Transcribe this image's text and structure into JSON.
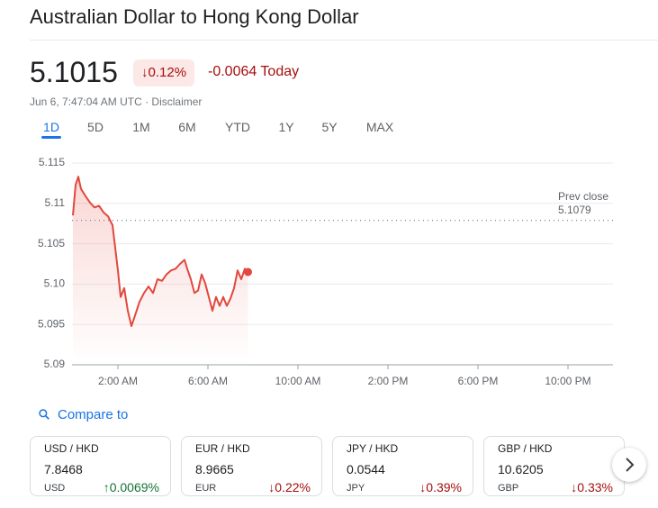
{
  "header": {
    "title": "Australian Dollar to Hong Kong Dollar",
    "price": "5.1015",
    "change_percent": "↓0.12%",
    "change_today": "-0.0064 Today",
    "timestamp": "Jun 6, 7:47:04 AM UTC ·",
    "disclaimer": "Disclaimer"
  },
  "tabs": {
    "items": [
      "1D",
      "5D",
      "1M",
      "6M",
      "YTD",
      "1Y",
      "5Y",
      "MAX"
    ],
    "selected_index": 0
  },
  "chart_data": {
    "type": "line",
    "color": "#e2483d",
    "x": [
      0,
      0.12,
      0.24,
      0.36,
      0.56,
      0.76,
      0.96,
      1.16,
      1.36,
      1.56,
      1.76,
      1.88,
      2.0,
      2.12,
      2.28,
      2.44,
      2.6,
      2.76,
      2.96,
      3.16,
      3.36,
      3.56,
      3.76,
      3.96,
      4.16,
      4.36,
      4.56,
      4.76,
      4.96,
      5.08,
      5.24,
      5.4,
      5.56,
      5.72,
      5.88,
      6.04,
      6.2,
      6.36,
      6.52,
      6.68,
      6.84,
      7.0,
      7.16,
      7.32,
      7.48,
      7.64,
      7.78
    ],
    "values": [
      5.1085,
      5.1123,
      5.1133,
      5.1118,
      5.1109,
      5.1101,
      5.1095,
      5.1097,
      5.1089,
      5.1084,
      5.1073,
      5.1045,
      5.1017,
      5.0984,
      5.0995,
      5.0967,
      5.0948,
      5.0961,
      5.0978,
      5.0989,
      5.0997,
      5.0989,
      5.1006,
      5.1004,
      5.1012,
      5.1017,
      5.1019,
      5.1025,
      5.103,
      5.1019,
      5.1006,
      5.0989,
      5.0992,
      5.1012,
      5.1001,
      5.0984,
      5.0967,
      5.0984,
      5.0973,
      5.0984,
      5.0973,
      5.0982,
      5.0995,
      5.1017,
      5.1006,
      5.1019,
      5.1015
    ],
    "xlim": [
      0,
      24
    ],
    "xticks": [
      {
        "value": 2,
        "label": "2:00 AM"
      },
      {
        "value": 6,
        "label": "6:00 AM"
      },
      {
        "value": 10,
        "label": "10:00 AM"
      },
      {
        "value": 14,
        "label": "2:00 PM"
      },
      {
        "value": 18,
        "label": "6:00 PM"
      },
      {
        "value": 22,
        "label": "10:00 PM"
      }
    ],
    "ylim": [
      5.09,
      5.115
    ],
    "yticks": [
      5.115,
      5.11,
      5.105,
      {
        "value": 5.1,
        "label": "5.10"
      },
      5.095,
      5.09
    ],
    "grid": true,
    "prev_close": {
      "label": "Prev close",
      "value": 5.1079
    }
  },
  "compare": {
    "label": "Compare to",
    "cards": [
      {
        "pair": "USD / HKD",
        "value": "7.8468",
        "currency": "USD",
        "change": "↑0.0069%",
        "color": "#137333"
      },
      {
        "pair": "EUR / HKD",
        "value": "8.9665",
        "currency": "EUR",
        "change": "↓0.22%",
        "color": "#a50e0e"
      },
      {
        "pair": "JPY / HKD",
        "value": "0.0544",
        "currency": "JPY",
        "change": "↓0.39%",
        "color": "#a50e0e"
      },
      {
        "pair": "GBP / HKD",
        "value": "10.6205",
        "currency": "GBP",
        "change": "↓0.33%",
        "color": "#a50e0e"
      }
    ]
  }
}
